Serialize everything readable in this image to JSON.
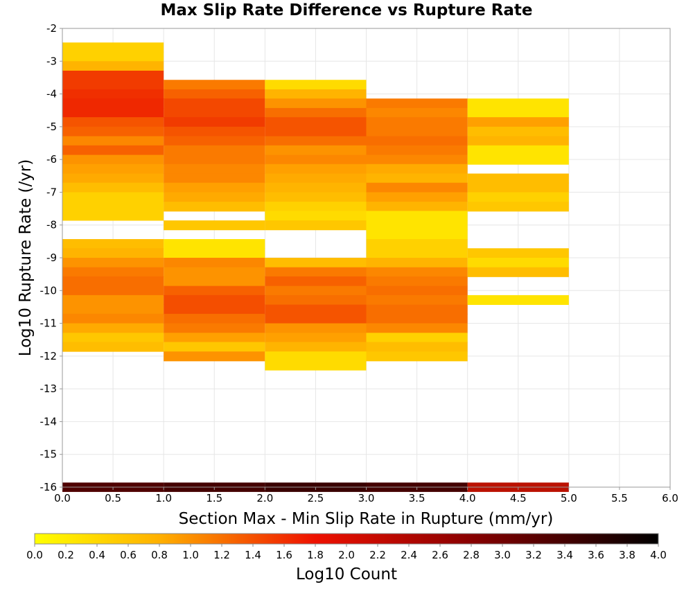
{
  "chart_data": {
    "type": "heatmap",
    "title": "Max Slip Rate Difference vs Rupture Rate",
    "xlabel": "Section Max - Min Slip Rate in Rupture (mm/yr)",
    "ylabel": "Log10 Rupture Rate (/yr)",
    "colorbar_label": "Log10 Count",
    "xlim": [
      0.0,
      6.0
    ],
    "ylim": [
      -16,
      -2
    ],
    "x_ticks": [
      "0.0",
      "0.5",
      "1.0",
      "1.5",
      "2.0",
      "2.5",
      "3.0",
      "3.5",
      "4.0",
      "4.5",
      "5.0",
      "5.5",
      "6.0"
    ],
    "y_ticks": [
      "-2",
      "-3",
      "-4",
      "-5",
      "-6",
      "-7",
      "-8",
      "-9",
      "-10",
      "-11",
      "-12",
      "-13",
      "-14",
      "-15",
      "-16"
    ],
    "colorbar_ticks": [
      "0.0",
      "0.2",
      "0.4",
      "0.6",
      "0.8",
      "1.0",
      "1.2",
      "1.4",
      "1.6",
      "1.8",
      "2.0",
      "2.2",
      "2.4",
      "2.6",
      "2.8",
      "3.0",
      "3.2",
      "3.4",
      "3.6",
      "3.8",
      "4.0"
    ],
    "color_range": [
      0.0,
      4.0
    ],
    "colorscale": [
      "#ffff00",
      "#ff9900",
      "#ee1100",
      "#880000",
      "#000000"
    ],
    "x_bin_width": 1.0,
    "y_bin_height": 0.286,
    "grid": true,
    "columns": [
      {
        "x_start": 0.0,
        "cells": [
          {
            "y_top": -2.43,
            "value": 0.3
          },
          {
            "y_top": -2.71,
            "value": 0.3
          },
          {
            "y_top": -3.0,
            "value": 0.6
          },
          {
            "y_top": -3.29,
            "value": 1.6
          },
          {
            "y_top": -3.57,
            "value": 1.6
          },
          {
            "y_top": -3.86,
            "value": 1.7
          },
          {
            "y_top": -4.14,
            "value": 1.75
          },
          {
            "y_top": -4.43,
            "value": 1.75
          },
          {
            "y_top": -4.71,
            "value": 1.4
          },
          {
            "y_top": -5.0,
            "value": 1.3
          },
          {
            "y_top": -5.29,
            "value": 1.0
          },
          {
            "y_top": -5.57,
            "value": 1.3
          },
          {
            "y_top": -5.86,
            "value": 0.9
          },
          {
            "y_top": -6.14,
            "value": 0.8
          },
          {
            "y_top": -6.43,
            "value": 0.7
          },
          {
            "y_top": -6.71,
            "value": 0.5
          },
          {
            "y_top": -7.0,
            "value": 0.3
          },
          {
            "y_top": -7.29,
            "value": 0.3
          },
          {
            "y_top": -7.57,
            "value": 0.3
          },
          {
            "y_top": -8.43,
            "value": 0.5
          },
          {
            "y_top": -8.71,
            "value": 0.6
          },
          {
            "y_top": -9.0,
            "value": 0.9
          },
          {
            "y_top": -9.29,
            "value": 1.1
          },
          {
            "y_top": -9.57,
            "value": 1.2
          },
          {
            "y_top": -9.86,
            "value": 1.2
          },
          {
            "y_top": -10.14,
            "value": 0.9
          },
          {
            "y_top": -10.43,
            "value": 0.9
          },
          {
            "y_top": -10.71,
            "value": 1.0
          },
          {
            "y_top": -11.0,
            "value": 0.7
          },
          {
            "y_top": -11.29,
            "value": 0.4
          },
          {
            "y_top": -11.57,
            "value": 0.5
          }
        ]
      },
      {
        "x_start": 1.0,
        "cells": [
          {
            "y_top": -3.57,
            "value": 1.1
          },
          {
            "y_top": -3.86,
            "value": 1.3
          },
          {
            "y_top": -4.14,
            "value": 1.5
          },
          {
            "y_top": -4.43,
            "value": 1.5
          },
          {
            "y_top": -4.71,
            "value": 1.6
          },
          {
            "y_top": -5.0,
            "value": 1.4
          },
          {
            "y_top": -5.29,
            "value": 1.3
          },
          {
            "y_top": -5.57,
            "value": 1.1
          },
          {
            "y_top": -5.86,
            "value": 1.1
          },
          {
            "y_top": -6.14,
            "value": 1.0
          },
          {
            "y_top": -6.43,
            "value": 1.0
          },
          {
            "y_top": -6.71,
            "value": 0.8
          },
          {
            "y_top": -7.0,
            "value": 0.7
          },
          {
            "y_top": -7.29,
            "value": 0.5
          },
          {
            "y_top": -7.86,
            "value": 0.4
          },
          {
            "y_top": -8.43,
            "value": 0.1
          },
          {
            "y_top": -8.71,
            "value": 0.1
          },
          {
            "y_top": -9.0,
            "value": 1.0
          },
          {
            "y_top": -9.29,
            "value": 0.9
          },
          {
            "y_top": -9.57,
            "value": 0.9
          },
          {
            "y_top": -9.86,
            "value": 1.3
          },
          {
            "y_top": -10.14,
            "value": 1.45
          },
          {
            "y_top": -10.43,
            "value": 1.45
          },
          {
            "y_top": -10.71,
            "value": 1.2
          },
          {
            "y_top": -11.0,
            "value": 1.1
          },
          {
            "y_top": -11.29,
            "value": 0.8
          },
          {
            "y_top": -11.57,
            "value": 0.4
          },
          {
            "y_top": -11.86,
            "value": 0.9
          }
        ]
      },
      {
        "x_start": 2.0,
        "cells": [
          {
            "y_top": -3.57,
            "value": 0.2
          },
          {
            "y_top": -3.86,
            "value": 0.6
          },
          {
            "y_top": -4.14,
            "value": 0.9
          },
          {
            "y_top": -4.43,
            "value": 1.2
          },
          {
            "y_top": -4.71,
            "value": 1.4
          },
          {
            "y_top": -5.0,
            "value": 1.4
          },
          {
            "y_top": -5.29,
            "value": 1.2
          },
          {
            "y_top": -5.57,
            "value": 0.9
          },
          {
            "y_top": -5.86,
            "value": 1.0
          },
          {
            "y_top": -6.14,
            "value": 0.8
          },
          {
            "y_top": -6.43,
            "value": 0.7
          },
          {
            "y_top": -6.71,
            "value": 0.6
          },
          {
            "y_top": -7.0,
            "value": 0.5
          },
          {
            "y_top": -7.29,
            "value": 0.3
          },
          {
            "y_top": -7.57,
            "value": 0.2
          },
          {
            "y_top": -7.86,
            "value": 0.4
          },
          {
            "y_top": -9.0,
            "value": 0.5
          },
          {
            "y_top": -9.29,
            "value": 1.1
          },
          {
            "y_top": -9.57,
            "value": 1.3
          },
          {
            "y_top": -9.86,
            "value": 1.1
          },
          {
            "y_top": -10.14,
            "value": 1.2
          },
          {
            "y_top": -10.43,
            "value": 1.4
          },
          {
            "y_top": -10.71,
            "value": 1.4
          },
          {
            "y_top": -11.0,
            "value": 0.9
          },
          {
            "y_top": -11.29,
            "value": 0.8
          },
          {
            "y_top": -11.57,
            "value": 0.6
          },
          {
            "y_top": -11.86,
            "value": 0.2
          },
          {
            "y_top": -12.14,
            "value": 0.2
          }
        ]
      },
      {
        "x_start": 3.0,
        "cells": [
          {
            "y_top": -4.14,
            "value": 1.1
          },
          {
            "y_top": -4.43,
            "value": 1.0
          },
          {
            "y_top": -4.71,
            "value": 1.1
          },
          {
            "y_top": -5.0,
            "value": 1.1
          },
          {
            "y_top": -5.29,
            "value": 1.2
          },
          {
            "y_top": -5.57,
            "value": 1.1
          },
          {
            "y_top": -5.86,
            "value": 1.0
          },
          {
            "y_top": -6.14,
            "value": 0.7
          },
          {
            "y_top": -6.43,
            "value": 0.6
          },
          {
            "y_top": -6.71,
            "value": 1.0
          },
          {
            "y_top": -7.0,
            "value": 0.8
          },
          {
            "y_top": -7.29,
            "value": 0.6
          },
          {
            "y_top": -7.57,
            "value": 0.1
          },
          {
            "y_top": -7.86,
            "value": 0.1
          },
          {
            "y_top": -8.14,
            "value": 0.1
          },
          {
            "y_top": -8.43,
            "value": 0.3
          },
          {
            "y_top": -8.71,
            "value": 0.3
          },
          {
            "y_top": -9.0,
            "value": 0.6
          },
          {
            "y_top": -9.29,
            "value": 1.0
          },
          {
            "y_top": -9.57,
            "value": 1.1
          },
          {
            "y_top": -9.86,
            "value": 1.2
          },
          {
            "y_top": -10.14,
            "value": 1.1
          },
          {
            "y_top": -10.43,
            "value": 1.2
          },
          {
            "y_top": -10.71,
            "value": 1.2
          },
          {
            "y_top": -11.0,
            "value": 1.0
          },
          {
            "y_top": -11.29,
            "value": 0.3
          },
          {
            "y_top": -11.57,
            "value": 0.5
          },
          {
            "y_top": -11.86,
            "value": 0.4
          }
        ]
      },
      {
        "x_start": 4.0,
        "cells": [
          {
            "y_top": -4.14,
            "value": 0.1
          },
          {
            "y_top": -4.43,
            "value": 0.1
          },
          {
            "y_top": -4.71,
            "value": 0.8
          },
          {
            "y_top": -5.0,
            "value": 0.5
          },
          {
            "y_top": -5.29,
            "value": 0.6
          },
          {
            "y_top": -5.57,
            "value": 0.1
          },
          {
            "y_top": -5.86,
            "value": 0.1
          },
          {
            "y_top": -6.43,
            "value": 0.5
          },
          {
            "y_top": -6.71,
            "value": 0.5
          },
          {
            "y_top": -7.0,
            "value": 0.3
          },
          {
            "y_top": -7.29,
            "value": 0.4
          },
          {
            "y_top": -8.71,
            "value": 0.4
          },
          {
            "y_top": -9.0,
            "value": 0.2
          },
          {
            "y_top": -9.29,
            "value": 0.5
          },
          {
            "y_top": -10.14,
            "value": 0.1
          }
        ]
      }
    ],
    "bottom_row": {
      "y_top": -15.86,
      "cells": [
        {
          "x_start": 0.0,
          "value": 3.3
        },
        {
          "x_start": 1.0,
          "value": 3.4
        },
        {
          "x_start": 2.0,
          "value": 3.5
        },
        {
          "x_start": 3.0,
          "value": 3.4
        },
        {
          "x_start": 4.0,
          "value": 2.3
        }
      ]
    }
  }
}
